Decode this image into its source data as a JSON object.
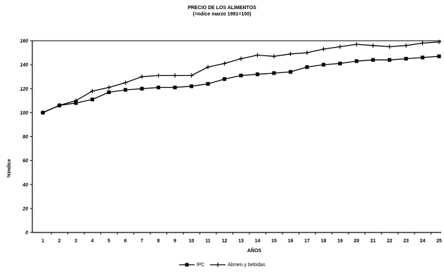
{
  "chart_data": {
    "type": "line",
    "title": "PRECIO DE LOS ALIMENTOS",
    "subtitle": "(=ndice marzo 1991=100)",
    "xlabel": "AÑOS",
    "ylabel": "%indice",
    "x": [
      1,
      2,
      3,
      4,
      5,
      6,
      7,
      8,
      9,
      10,
      11,
      12,
      13,
      14,
      15,
      16,
      17,
      18,
      19,
      20,
      21,
      22,
      23,
      24,
      25
    ],
    "y_ticks": [
      "0",
      "20",
      "40",
      "60",
      "80",
      "100",
      "120",
      "140",
      "160"
    ],
    "y_ticks_values": [
      0,
      20,
      40,
      60,
      80,
      100,
      120,
      140,
      160
    ],
    "ylim": [
      0,
      160
    ],
    "grid": false,
    "legend_position": "bottom",
    "series": [
      {
        "name": "IPC",
        "marker": "square",
        "color": "#000000",
        "values": [
          100,
          106,
          108,
          111,
          117,
          119,
          120,
          121,
          121,
          122,
          124,
          128,
          131,
          132,
          133,
          134,
          138,
          140,
          141,
          143,
          144,
          144,
          145,
          146,
          147
        ]
      },
      {
        "name": "Alimen.y bebidas",
        "marker": "plus",
        "color": "#000000",
        "values": [
          100,
          106,
          110,
          118,
          121,
          125,
          130,
          131,
          131,
          131,
          138,
          141,
          145,
          148,
          147,
          149,
          150,
          153,
          155,
          157,
          156,
          155,
          156,
          158,
          159
        ]
      }
    ]
  }
}
